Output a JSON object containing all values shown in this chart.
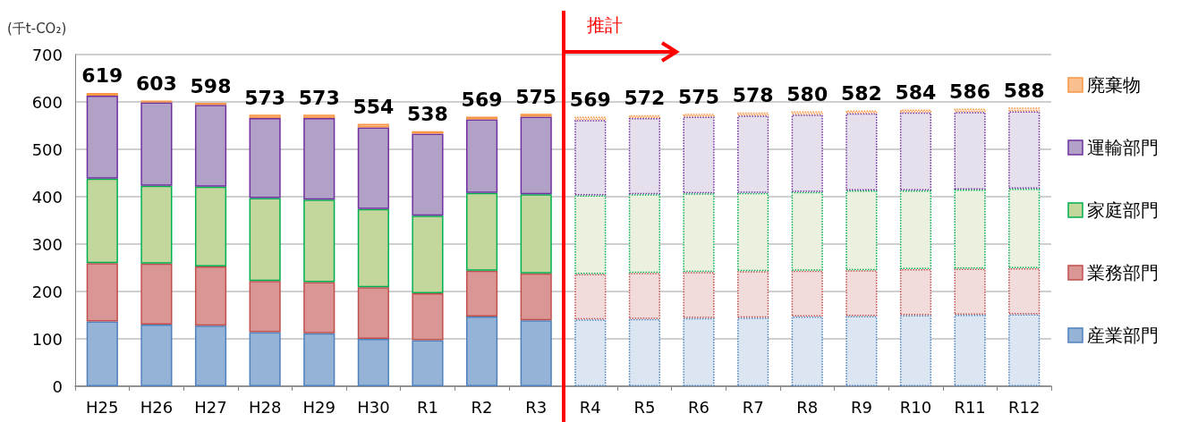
{
  "chart_data": {
    "type": "bar",
    "stacked": true,
    "ylabel": "(千t-CO₂)",
    "categories": [
      "H25",
      "H26",
      "H27",
      "H28",
      "H29",
      "H30",
      "R1",
      "R2",
      "R3",
      "R4",
      "R5",
      "R6",
      "R7",
      "R8",
      "R9",
      "R10",
      "R11",
      "R12"
    ],
    "series": [
      {
        "name": "産業部門",
        "color": "#4f81bd",
        "colors": [
          "#95b3d7",
          "#95b3d7",
          "#95b3d7",
          "#95b3d7",
          "#95b3d7",
          "#95b3d7",
          "#95b3d7",
          "#95b3d7",
          "#95b3d7",
          "#dce6f2",
          "#dce6f2",
          "#dce6f2",
          "#dce6f2",
          "#dce6f2",
          "#dce6f2",
          "#dce6f2",
          "#dce6f2",
          "#dce6f2"
        ],
        "values": [
          137,
          130,
          128,
          114,
          112,
          100,
          97,
          147,
          139,
          141,
          142,
          144,
          145,
          147,
          148,
          150,
          151,
          152
        ]
      },
      {
        "name": "業務部門",
        "color": "#c0504d",
        "colors": [
          "#d99694",
          "#d99694",
          "#d99694",
          "#d99694",
          "#d99694",
          "#d99694",
          "#d99694",
          "#d99694",
          "#d99694",
          "#f2dcdb",
          "#f2dcdb",
          "#f2dcdb",
          "#f2dcdb",
          "#f2dcdb",
          "#f2dcdb",
          "#f2dcdb",
          "#f2dcdb",
          "#f2dcdb"
        ],
        "values": [
          123,
          129,
          125,
          108,
          108,
          109,
          99,
          97,
          99,
          96,
          97,
          97,
          98,
          97,
          97,
          97,
          97,
          97
        ]
      },
      {
        "name": "家庭部門",
        "color": "#00b050",
        "colors": [
          "#c3d69b",
          "#c3d69b",
          "#c3d69b",
          "#c3d69b",
          "#c3d69b",
          "#c3d69b",
          "#c3d69b",
          "#c3d69b",
          "#c3d69b",
          "#ebf1de",
          "#ebf1de",
          "#ebf1de",
          "#ebf1de",
          "#ebf1de",
          "#ebf1de",
          "#ebf1de",
          "#ebf1de",
          "#ebf1de"
        ],
        "values": [
          178,
          164,
          168,
          175,
          174,
          165,
          164,
          164,
          167,
          166,
          166,
          166,
          165,
          166,
          168,
          166,
          167,
          168
        ]
      },
      {
        "name": "運輸部門",
        "color": "#7030a0",
        "colors": [
          "#b2a1c7",
          "#b2a1c7",
          "#b2a1c7",
          "#b2a1c7",
          "#b2a1c7",
          "#b2a1c7",
          "#b2a1c7",
          "#b2a1c7",
          "#b2a1c7",
          "#e5e0ec",
          "#e5e0ec",
          "#e5e0ec",
          "#e5e0ec",
          "#e5e0ec",
          "#e5e0ec",
          "#e5e0ec",
          "#e5e0ec",
          "#e5e0ec"
        ],
        "values": [
          175,
          176,
          173,
          169,
          172,
          172,
          173,
          155,
          164,
          159,
          161,
          162,
          163,
          163,
          163,
          165,
          164,
          163
        ]
      },
      {
        "name": "廃棄物",
        "color": "#f79646",
        "colors": [
          "#fabf8f",
          "#fabf8f",
          "#fabf8f",
          "#fabf8f",
          "#fabf8f",
          "#fabf8f",
          "#fabf8f",
          "#fabf8f",
          "#fabf8f",
          "#fde9d9",
          "#fde9d9",
          "#fde9d9",
          "#fde9d9",
          "#fde9d9",
          "#fde9d9",
          "#fde9d9",
          "#fde9d9",
          "#fde9d9"
        ],
        "values": [
          6,
          4,
          4,
          7,
          7,
          8,
          5,
          6,
          6,
          7,
          6,
          6,
          7,
          7,
          6,
          6,
          7,
          8
        ]
      }
    ],
    "totals": [
      "619",
      "603",
      "598",
      "573",
      "573",
      "554",
      "538",
      "569",
      "575",
      "569",
      "572",
      "575",
      "578",
      "580",
      "582",
      "584",
      "586",
      "588"
    ],
    "ylim": [
      0,
      700
    ],
    "yticks": [
      0,
      100,
      200,
      300,
      400,
      500,
      600,
      700
    ],
    "grid": "y",
    "legend": "right",
    "ref_lines": [
      {
        "axis": "x",
        "value": "R4",
        "label": "推計",
        "color": "#ff0000",
        "line_style": "solid"
      }
    ]
  }
}
